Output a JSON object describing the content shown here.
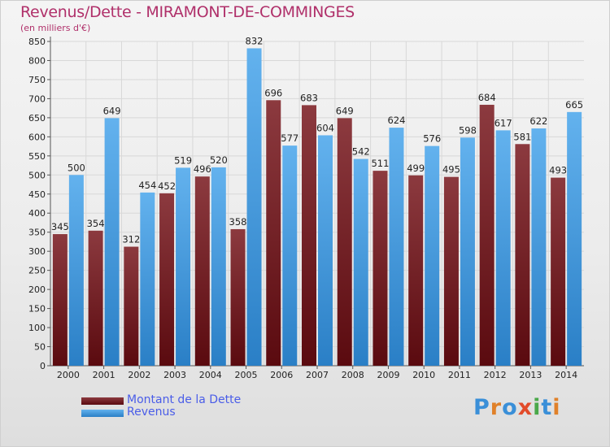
{
  "header": {
    "title": "Revenus/Dette - MIRAMONT-DE-COMMINGES",
    "subtitle": "(en milliers d'€)"
  },
  "logo": {
    "text": "Proxiti",
    "colors": [
      "#3a8fd8",
      "#e0812a",
      "#3a8fd8",
      "#e24b2a",
      "#4aa84a",
      "#3a8fd8",
      "#e0812a"
    ]
  },
  "colors": {
    "dette_dark": "#5a0a0f",
    "dette_light": "#8c3a3f",
    "revenus_dark": "#2a7fc6",
    "revenus_light": "#63b2ee",
    "grid": "#d8d8d8"
  },
  "chart_data": {
    "type": "bar",
    "title": "Revenus/Dette - MIRAMONT-DE-COMMINGES",
    "subtitle": "(en milliers d'€)",
    "categories": [
      "2000",
      "2001",
      "2002",
      "2003",
      "2004",
      "2005",
      "2006",
      "2007",
      "2008",
      "2009",
      "2010",
      "2011",
      "2012",
      "2013",
      "2014"
    ],
    "series": [
      {
        "name": "Montant de la Dette",
        "values": [
          345,
          354,
          312,
          452,
          496,
          358,
          696,
          683,
          649,
          511,
          499,
          495,
          684,
          581,
          493
        ]
      },
      {
        "name": "Revenus",
        "values": [
          500,
          649,
          454,
          519,
          520,
          832,
          577,
          604,
          542,
          624,
          576,
          598,
          617,
          622,
          665
        ]
      }
    ],
    "ylim": [
      0,
      850
    ],
    "yticks": [
      0,
      50,
      100,
      150,
      200,
      250,
      300,
      350,
      400,
      450,
      500,
      550,
      600,
      650,
      700,
      750,
      800,
      850
    ],
    "grid": true,
    "legend": "bottom-left"
  }
}
